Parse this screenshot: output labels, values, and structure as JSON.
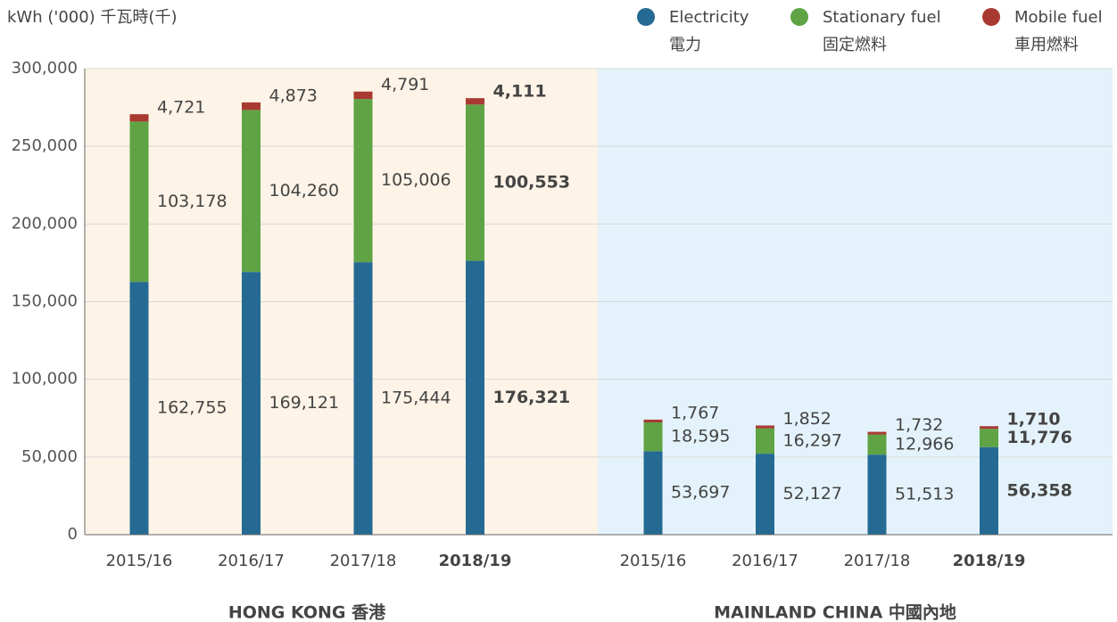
{
  "chart_data": {
    "type": "stacked_bar",
    "y_label": "kWh ('000) 千瓦時(千)",
    "group_labels": [
      "HONG KONG 香港",
      "MAINLAND CHINA 中國內地"
    ],
    "categories": [
      "2015/16",
      "2016/17",
      "2017/18",
      "2018/19",
      "2015/16",
      "2016/17",
      "2017/18",
      "2018/19"
    ],
    "series": [
      {
        "name": "Electricity",
        "name_zh": "電力",
        "color": "#256a93",
        "values": [
          162755,
          169121,
          175444,
          176321,
          53697,
          52127,
          51513,
          56358
        ],
        "value_labels": [
          "162,755",
          "169,121",
          "175,444",
          "176,321",
          "53,697",
          "52,127",
          "51,513",
          "56,358"
        ]
      },
      {
        "name": "Stationary fuel",
        "name_zh": "固定燃料",
        "color": "#5fa345",
        "values": [
          103178,
          104260,
          105006,
          100553,
          18595,
          16297,
          12966,
          11776
        ],
        "value_labels": [
          "103,178",
          "104,260",
          "105,006",
          "100,553",
          "18,595",
          "16,297",
          "12,966",
          "11,776"
        ]
      },
      {
        "name": "Mobile fuel",
        "name_zh": "車用燃料",
        "color": "#a93a32",
        "values": [
          4721,
          4873,
          4791,
          4111,
          1767,
          1852,
          1732,
          1710
        ],
        "value_labels": [
          "4,721",
          "4,873",
          "4,791",
          "4,111",
          "1,767",
          "1,852",
          "1,732",
          "1,710"
        ]
      }
    ],
    "ylim": [
      0,
      300000
    ],
    "yticks": [
      0,
      {
        "value": 50000,
        "label": "50,000"
      },
      {
        "value": 100000,
        "label": "100,000"
      },
      {
        "value": 150000,
        "label": "150,000"
      },
      {
        "value": 200000,
        "label": "200,000"
      },
      {
        "value": 250000,
        "label": "250,000"
      },
      {
        "value": 300000,
        "label": "300,000"
      }
    ],
    "grid": true
  }
}
